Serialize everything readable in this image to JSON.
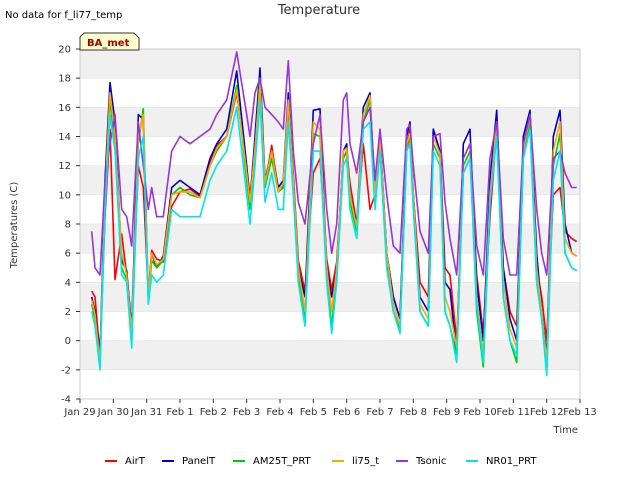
{
  "note": "No data for f_li77_temp",
  "chart_data": {
    "type": "line",
    "title": "Temperature",
    "xlabel": "Time",
    "ylabel": "Temperatures (C)",
    "ylim": [
      -4,
      20
    ],
    "xlim": [
      0,
      15
    ],
    "yticks": [
      -4,
      -2,
      0,
      2,
      4,
      6,
      8,
      10,
      12,
      14,
      16,
      18,
      20
    ],
    "xtick_labels": [
      "Jan 29",
      "Jan 30",
      "Jan 31",
      "Feb 1",
      "Feb 2",
      "Feb 3",
      "Feb 4",
      "Feb 5",
      "Feb 6",
      "Feb 7",
      "Feb 8",
      "Feb 9",
      "Feb 10",
      "Feb 11",
      "Feb 12",
      "Feb 13"
    ],
    "station_badge": "BA_met",
    "x_unit": "days since Jan 29",
    "series": [
      {
        "name": "AirT",
        "color": "#ff0000",
        "x": [
          0.35,
          0.45,
          0.6,
          0.75,
          0.9,
          1.05,
          1.25,
          1.4,
          1.55,
          1.75,
          1.9,
          2.05,
          2.15,
          2.3,
          2.5,
          2.75,
          3.0,
          3.3,
          3.6,
          3.9,
          4.1,
          4.4,
          4.7,
          5.0,
          5.1,
          5.25,
          5.4,
          5.55,
          5.75,
          5.95,
          6.1,
          6.25,
          6.4,
          6.55,
          6.75,
          7.0,
          7.2,
          7.4,
          7.55,
          7.7,
          7.9,
          8.0,
          8.1,
          8.3,
          8.5,
          8.7,
          8.85,
          9.0,
          9.2,
          9.4,
          9.6,
          9.8,
          9.9,
          10.0,
          10.2,
          10.45,
          10.6,
          10.8,
          10.95,
          11.1,
          11.3,
          11.5,
          11.7,
          11.9,
          12.1,
          12.3,
          12.5,
          12.7,
          12.9,
          13.1,
          13.3,
          13.5,
          13.7,
          13.85,
          14.0,
          14.2,
          14.4,
          14.55,
          14.75,
          14.9
        ],
        "y": [
          3.4,
          3.0,
          -1.0,
          8.5,
          14.5,
          4.2,
          7.3,
          4.5,
          1.0,
          12.0,
          10.5,
          3.2,
          6.2,
          5.6,
          5.4,
          9.2,
          10.2,
          10.4,
          9.9,
          12.2,
          13.4,
          14.0,
          17.0,
          11.8,
          9.9,
          13.2,
          16.8,
          10.6,
          13.4,
          10.2,
          10.6,
          16.5,
          11.5,
          5.5,
          3.4,
          11.5,
          12.5,
          5.6,
          3.5,
          5.4,
          12.5,
          13.0,
          10.8,
          8.0,
          13.5,
          9.0,
          10.0,
          14.0,
          6.0,
          3.0,
          1.5,
          13.2,
          14.5,
          10.0,
          4.0,
          3.0,
          14.5,
          13.0,
          5.0,
          4.5,
          0.0,
          11.5,
          12.5,
          4.5,
          0.5,
          8.5,
          14.5,
          5.0,
          2.0,
          1.0,
          13.0,
          15.0,
          5.0,
          3.0,
          0.0,
          10.0,
          10.5,
          7.5,
          7.0,
          6.8
        ]
      },
      {
        "name": "PanelT",
        "color": "#0000cc",
        "x": [
          0.35,
          0.45,
          0.6,
          0.75,
          0.9,
          1.05,
          1.25,
          1.4,
          1.55,
          1.75,
          1.9,
          2.05,
          2.15,
          2.3,
          2.5,
          2.75,
          3.0,
          3.3,
          3.6,
          3.9,
          4.1,
          4.4,
          4.7,
          5.0,
          5.1,
          5.25,
          5.4,
          5.55,
          5.75,
          5.95,
          6.1,
          6.25,
          6.4,
          6.55,
          6.75,
          7.0,
          7.2,
          7.4,
          7.55,
          7.7,
          7.9,
          8.0,
          8.1,
          8.3,
          8.5,
          8.7,
          8.85,
          9.0,
          9.2,
          9.4,
          9.6,
          9.8,
          9.9,
          10.0,
          10.2,
          10.45,
          10.6,
          10.8,
          10.95,
          11.1,
          11.3,
          11.5,
          11.7,
          11.9,
          12.1,
          12.3,
          12.5,
          12.7,
          12.9,
          13.1,
          13.3,
          13.5,
          13.7,
          13.85,
          14.0,
          14.2,
          14.4,
          14.55,
          14.75,
          14.9
        ],
        "y": [
          3.0,
          2.0,
          -1.2,
          11.0,
          17.7,
          15.0,
          5.5,
          4.8,
          0.8,
          15.5,
          15.2,
          3.0,
          6.0,
          5.0,
          5.8,
          10.5,
          11.0,
          10.5,
          10.0,
          12.5,
          13.5,
          14.5,
          18.5,
          12.0,
          9.5,
          14.0,
          18.7,
          11.0,
          13.0,
          10.5,
          11.0,
          17.0,
          11.0,
          5.0,
          3.0,
          15.8,
          15.9,
          5.0,
          3.0,
          5.0,
          13.0,
          13.5,
          10.0,
          8.0,
          16.0,
          17.0,
          10.0,
          14.0,
          6.0,
          3.0,
          1.5,
          14.0,
          15.0,
          10.0,
          3.0,
          2.0,
          14.5,
          13.0,
          4.0,
          3.5,
          -1.0,
          13.5,
          14.5,
          4.0,
          0.0,
          11.0,
          15.8,
          5.0,
          1.5,
          0.0,
          14.0,
          15.8,
          6.0,
          2.0,
          -1.0,
          14.0,
          15.8,
          8.0,
          6.0,
          5.8
        ]
      },
      {
        "name": "AM25T_PRT",
        "color": "#00cc00",
        "x": [
          0.35,
          0.45,
          0.6,
          0.75,
          0.9,
          1.05,
          1.25,
          1.4,
          1.55,
          1.75,
          1.9,
          2.05,
          2.15,
          2.3,
          2.5,
          2.75,
          3.0,
          3.3,
          3.6,
          3.9,
          4.1,
          4.4,
          4.7,
          5.0,
          5.1,
          5.25,
          5.4,
          5.55,
          5.75,
          5.95,
          6.1,
          6.25,
          6.4,
          6.55,
          6.75,
          7.0,
          7.2,
          7.4,
          7.55,
          7.7,
          7.9,
          8.0,
          8.1,
          8.3,
          8.5,
          8.7,
          8.85,
          9.0,
          9.2,
          9.4,
          9.6,
          9.8,
          9.9,
          10.0,
          10.2,
          10.45,
          10.6,
          10.8,
          10.95,
          11.1,
          11.3,
          11.5,
          11.7,
          11.9,
          12.1,
          12.3,
          12.5,
          12.7,
          12.9,
          13.1,
          13.3,
          13.5,
          13.7,
          13.85,
          14.0,
          14.2,
          14.4,
          14.55,
          14.75,
          14.9
        ],
        "y": [
          2.5,
          1.5,
          -1.8,
          9.5,
          16.5,
          13.5,
          5.0,
          4.2,
          0.0,
          13.5,
          15.9,
          2.8,
          5.5,
          5.0,
          5.5,
          10.0,
          10.5,
          10.0,
          9.8,
          12.0,
          13.0,
          14.0,
          17.5,
          11.0,
          9.0,
          13.0,
          18.0,
          10.5,
          12.5,
          10.2,
          10.5,
          16.0,
          11.0,
          4.5,
          1.5,
          14.2,
          14.0,
          4.5,
          1.0,
          4.5,
          12.5,
          13.0,
          9.5,
          7.5,
          15.0,
          16.5,
          9.5,
          13.5,
          5.5,
          2.0,
          0.8,
          13.0,
          14.0,
          9.5,
          2.0,
          1.0,
          13.5,
          12.5,
          2.0,
          1.0,
          -1.0,
          12.0,
          13.0,
          2.0,
          -1.8,
          9.5,
          14.5,
          3.0,
          0.0,
          -1.5,
          12.5,
          15.0,
          4.0,
          1.5,
          -2.0,
          12.0,
          14.2,
          6.0,
          5.0,
          4.8
        ]
      },
      {
        "name": "li75_t",
        "color": "#ffa500",
        "x": [
          0.35,
          0.45,
          0.6,
          0.75,
          0.9,
          1.05,
          1.25,
          1.4,
          1.55,
          1.75,
          1.9,
          2.05,
          2.15,
          2.3,
          2.5,
          2.75,
          3.0,
          3.3,
          3.6,
          3.9,
          4.1,
          4.4,
          4.7,
          5.0,
          5.1,
          5.25,
          5.4,
          5.55,
          5.75,
          5.95,
          6.1,
          6.25,
          6.4,
          6.55,
          6.75,
          7.0,
          7.2,
          7.4,
          7.55,
          7.7,
          7.9,
          8.0,
          8.1,
          8.3,
          8.5,
          8.7,
          8.85,
          9.0,
          9.2,
          9.4,
          9.6,
          9.8,
          9.9,
          10.0,
          10.2,
          10.45,
          10.6,
          10.8,
          10.95,
          11.1,
          11.3,
          11.5,
          11.7,
          11.9,
          12.1,
          12.3,
          12.5,
          12.7,
          12.9,
          13.1,
          13.3,
          13.5,
          13.7,
          13.85,
          14.0,
          14.2,
          14.4,
          14.55,
          14.75,
          14.9
        ],
        "y": [
          2.8,
          1.8,
          -1.5,
          10.0,
          17.0,
          14.0,
          6.0,
          4.5,
          0.5,
          14.0,
          15.5,
          3.0,
          6.0,
          5.2,
          5.6,
          10.0,
          10.2,
          10.2,
          9.8,
          12.0,
          13.2,
          14.0,
          17.2,
          11.5,
          9.5,
          13.2,
          17.5,
          10.8,
          13.0,
          10.2,
          10.8,
          16.5,
          11.0,
          5.0,
          2.0,
          15.0,
          14.5,
          5.0,
          2.0,
          5.0,
          13.0,
          13.2,
          10.0,
          7.8,
          15.5,
          16.8,
          10.0,
          13.8,
          6.0,
          2.5,
          1.0,
          13.5,
          14.2,
          10.0,
          2.5,
          1.5,
          14.0,
          12.8,
          3.0,
          2.0,
          -0.5,
          12.5,
          13.5,
          3.0,
          -1.0,
          10.0,
          15.0,
          4.0,
          0.8,
          -0.5,
          13.0,
          15.5,
          5.0,
          2.0,
          -1.5,
          13.0,
          15.0,
          7.0,
          6.0,
          5.8
        ]
      },
      {
        "name": "Tsonic",
        "color": "#9933dd",
        "x": [
          0.35,
          0.45,
          0.6,
          0.75,
          0.9,
          1.05,
          1.25,
          1.4,
          1.55,
          1.75,
          1.9,
          2.05,
          2.15,
          2.3,
          2.5,
          2.75,
          3.0,
          3.3,
          3.6,
          3.9,
          4.1,
          4.4,
          4.7,
          5.0,
          5.1,
          5.25,
          5.4,
          5.55,
          5.75,
          5.95,
          6.1,
          6.25,
          6.4,
          6.55,
          6.75,
          7.0,
          7.2,
          7.4,
          7.55,
          7.7,
          7.9,
          8.0,
          8.1,
          8.3,
          8.5,
          8.7,
          8.85,
          9.0,
          9.2,
          9.4,
          9.6,
          9.8,
          9.9,
          10.0,
          10.2,
          10.45,
          10.6,
          10.8,
          10.95,
          11.1,
          11.3,
          11.5,
          11.7,
          11.9,
          12.1,
          12.3,
          12.5,
          12.7,
          12.9,
          13.1,
          13.3,
          13.5,
          13.7,
          13.85,
          14.0,
          14.2,
          14.4,
          14.55,
          14.75,
          14.9
        ],
        "y": [
          7.5,
          5.0,
          4.5,
          11.0,
          13.5,
          15.5,
          9.0,
          8.5,
          6.5,
          15.0,
          12.0,
          9.0,
          10.5,
          8.5,
          8.5,
          13.0,
          14.0,
          13.5,
          14.0,
          14.5,
          15.5,
          16.5,
          19.8,
          15.5,
          14.0,
          17.0,
          18.0,
          16.0,
          15.5,
          15.0,
          14.5,
          19.2,
          13.0,
          9.5,
          8.0,
          13.5,
          15.5,
          9.0,
          6.0,
          8.0,
          16.5,
          17.0,
          13.5,
          11.5,
          15.0,
          16.0,
          11.0,
          14.5,
          10.0,
          6.5,
          6.0,
          14.5,
          14.8,
          12.0,
          7.5,
          6.0,
          14.0,
          14.2,
          9.5,
          7.0,
          4.5,
          12.5,
          13.5,
          6.5,
          4.5,
          12.5,
          15.0,
          7.0,
          4.5,
          4.5,
          13.5,
          15.5,
          9.0,
          6.0,
          4.5,
          12.5,
          13.0,
          11.5,
          10.5,
          10.5
        ]
      },
      {
        "name": "NR01_PRT",
        "color": "#00e5ee",
        "x": [
          0.35,
          0.45,
          0.6,
          0.75,
          0.9,
          1.05,
          1.25,
          1.4,
          1.55,
          1.75,
          1.9,
          2.05,
          2.15,
          2.3,
          2.5,
          2.75,
          3.0,
          3.3,
          3.6,
          3.9,
          4.1,
          4.4,
          4.7,
          5.0,
          5.1,
          5.25,
          5.4,
          5.55,
          5.75,
          5.95,
          6.1,
          6.25,
          6.4,
          6.55,
          6.75,
          7.0,
          7.2,
          7.4,
          7.55,
          7.7,
          7.9,
          8.0,
          8.1,
          8.3,
          8.5,
          8.7,
          8.85,
          9.0,
          9.2,
          9.4,
          9.6,
          9.8,
          9.9,
          10.0,
          10.2,
          10.45,
          10.6,
          10.8,
          10.95,
          11.1,
          11.3,
          11.5,
          11.7,
          11.9,
          12.1,
          12.3,
          12.5,
          12.7,
          12.9,
          13.1,
          13.3,
          13.5,
          13.7,
          13.85,
          14.0,
          14.2,
          14.4,
          14.55,
          14.75,
          14.9
        ],
        "y": [
          2.0,
          1.0,
          -2.0,
          9.0,
          15.5,
          13.0,
          4.5,
          4.0,
          -0.5,
          12.5,
          14.0,
          2.5,
          4.5,
          4.0,
          4.5,
          9.0,
          8.5,
          8.5,
          8.5,
          11.0,
          12.0,
          13.0,
          16.0,
          10.0,
          8.0,
          12.0,
          16.5,
          9.5,
          11.5,
          9.0,
          9.0,
          15.0,
          10.0,
          4.0,
          1.0,
          13.0,
          13.0,
          4.0,
          0.5,
          4.0,
          12.0,
          12.5,
          9.0,
          7.0,
          14.5,
          15.0,
          9.0,
          13.0,
          5.0,
          2.0,
          0.5,
          13.0,
          13.5,
          9.0,
          2.0,
          1.0,
          13.0,
          12.0,
          2.0,
          1.0,
          -1.5,
          11.5,
          12.5,
          2.5,
          -1.5,
          9.5,
          14.0,
          3.0,
          0.0,
          -1.0,
          12.5,
          14.5,
          4.0,
          1.5,
          -2.4,
          11.0,
          13.0,
          6.0,
          5.0,
          4.8
        ]
      }
    ]
  }
}
